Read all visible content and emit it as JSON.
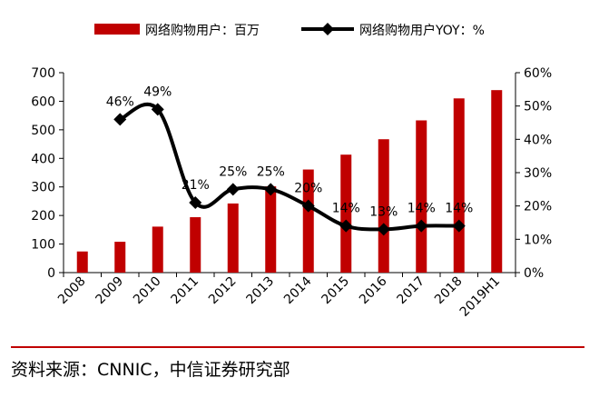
{
  "chart_data": {
    "type": "bar+line",
    "categories": [
      "2008",
      "2009",
      "2010",
      "2011",
      "2012",
      "2013",
      "2014",
      "2015",
      "2016",
      "2017",
      "2018",
      "2019H1"
    ],
    "series": [
      {
        "name": "网络购物用户：百万",
        "type": "bar",
        "axis": "left",
        "color": "#c00000",
        "values": [
          74,
          108,
          161,
          194,
          242,
          302,
          361,
          413,
          467,
          533,
          610,
          639
        ]
      },
      {
        "name": "网络购物用户YOY：%",
        "type": "line",
        "axis": "right",
        "color": "#000000",
        "values": [
          null,
          46,
          49,
          21,
          25,
          25,
          20,
          14,
          13,
          14,
          14,
          null
        ],
        "labels": [
          null,
          "46%",
          "49%",
          "21%",
          "25%",
          "25%",
          "20%",
          "14%",
          "13%",
          "14%",
          "14%",
          null
        ]
      }
    ],
    "left_axis": {
      "ylim": [
        0,
        700
      ],
      "ticks": [
        0,
        100,
        200,
        300,
        400,
        500,
        600,
        700
      ],
      "tick_labels": [
        "0",
        "100",
        "200",
        "300",
        "400",
        "500",
        "600",
        "700"
      ]
    },
    "right_axis": {
      "ylim": [
        0,
        60
      ],
      "ticks": [
        0,
        10,
        20,
        30,
        40,
        50,
        60
      ],
      "tick_labels": [
        "0%",
        "10%",
        "20%",
        "30%",
        "40%",
        "50%",
        "60%"
      ]
    },
    "legend": {
      "placement": "top",
      "entries": [
        "网络购物用户：百万",
        "网络购物用户YOY：%"
      ]
    }
  },
  "footer": {
    "source": "资料来源：CNNIC，中信证券研究部"
  }
}
